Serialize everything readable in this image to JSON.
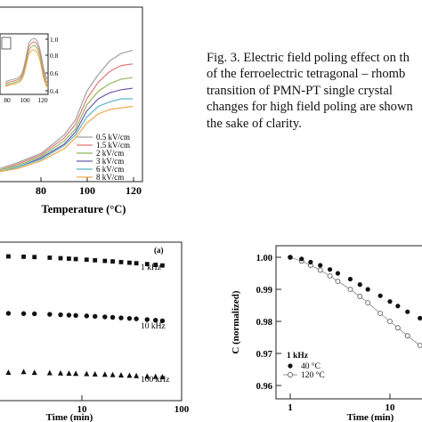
{
  "caption": {
    "lines": [
      "Fig. 3. Electric field poling effect on th",
      "of the ferroelectric tetragonal – rhomb",
      "transition of PMN-PT single crystal",
      "changes for high field poling are shown",
      "the sake of clarity."
    ]
  },
  "figure_top": {
    "xlabel": "Temperature (°C)",
    "x_ticks": [
      "80",
      "100",
      "120"
    ],
    "inset_x_ticks": [
      "80",
      "100",
      "120"
    ],
    "inset_y_ticks": [
      "1.0",
      "0.8",
      "0.6",
      "0.4"
    ],
    "legend": [
      "0.5 kV/cm",
      "1.5 kV/cm",
      "2 kV/cm",
      "3 kV/cm",
      "6 kV/cm",
      "8 kV/cm"
    ],
    "colors": [
      "#a0a0a0",
      "#e07a78",
      "#8fb85a",
      "#6e5aa8",
      "#5bb4c6",
      "#f0a84a"
    ]
  },
  "figure_bottom_left": {
    "panel_label": "(a)",
    "xlabel": "Time (min)",
    "x_ticks": [
      "10",
      "100"
    ],
    "series_labels": [
      "1 kHz",
      "10 kHz",
      "100 kHz"
    ]
  },
  "figure_bottom_right": {
    "ylabel": "C (normalized)",
    "y_ticks": [
      "1.00",
      "0.99",
      "0.98",
      "0.97",
      "0.96"
    ],
    "x_ticks": [
      "1",
      "10"
    ],
    "xlabel": "Time (min)",
    "legend_title": "1 kHz",
    "legend": [
      "40 °C",
      "120 °C"
    ]
  },
  "chart_data": [
    {
      "type": "line",
      "title": "",
      "xlabel": "Temperature (°C)",
      "ylabel": "",
      "xlim": [
        62,
        122
      ],
      "ylim": [
        0,
        1
      ],
      "x": [
        62,
        70,
        80,
        90,
        95,
        100,
        105,
        110,
        115,
        120
      ],
      "series": [
        {
          "name": "0.5 kV/cm",
          "values": [
            0.04,
            0.08,
            0.14,
            0.26,
            0.36,
            0.55,
            0.66,
            0.75,
            0.8,
            0.82
          ]
        },
        {
          "name": "1.5 kV/cm",
          "values": [
            0.03,
            0.07,
            0.13,
            0.24,
            0.33,
            0.5,
            0.61,
            0.68,
            0.72,
            0.73
          ]
        },
        {
          "name": "2 kV/cm",
          "values": [
            0.03,
            0.06,
            0.12,
            0.22,
            0.3,
            0.46,
            0.55,
            0.6,
            0.63,
            0.64
          ]
        },
        {
          "name": "3 kV/cm",
          "values": [
            0.02,
            0.05,
            0.11,
            0.2,
            0.28,
            0.42,
            0.5,
            0.54,
            0.56,
            0.57
          ]
        },
        {
          "name": "6 kV/cm",
          "values": [
            0.02,
            0.05,
            0.1,
            0.19,
            0.26,
            0.38,
            0.45,
            0.48,
            0.5,
            0.5
          ]
        },
        {
          "name": "8 kV/cm",
          "values": [
            0.02,
            0.04,
            0.09,
            0.17,
            0.24,
            0.34,
            0.4,
            0.43,
            0.44,
            0.45
          ]
        }
      ]
    },
    {
      "type": "scatter",
      "title": "",
      "xlabel": "Time (min)",
      "ylabel": "",
      "xscale": "log",
      "xlim": [
        0.8,
        100
      ],
      "x": [
        1,
        1.5,
        2,
        3,
        4,
        5,
        6,
        8,
        10,
        13,
        16,
        20,
        25,
        30,
        40,
        50,
        60
      ],
      "series": [
        {
          "name": "1 kHz",
          "values": [
            0,
            -0.3,
            -0.6,
            -1.2,
            -1.7,
            -2.1,
            -2.5,
            -3.1,
            -3.6,
            -4.2,
            -4.7,
            -5.3,
            -5.9,
            -6.4,
            -7.2,
            -7.9,
            -8.5
          ]
        },
        {
          "name": "10 kHz",
          "values": [
            0,
            -0.2,
            -0.4,
            -0.9,
            -1.3,
            -1.6,
            -1.9,
            -2.4,
            -2.8,
            -3.3,
            -3.7,
            -4.2,
            -4.7,
            -5.1,
            -5.8,
            -6.4,
            -6.9
          ]
        },
        {
          "name": "100 kHz",
          "values": [
            0,
            0.6,
            -0.1,
            -0.4,
            -0.6,
            -0.8,
            -1.0,
            -1.3,
            -1.6,
            -1.9,
            -2.2,
            -2.5,
            -2.8,
            -3.1,
            -3.5,
            -3.9,
            -4.2
          ]
        }
      ]
    },
    {
      "type": "scatter",
      "title": "",
      "xlabel": "Time (min)",
      "ylabel": "C (normalized)",
      "xscale": "log",
      "xlim": [
        0.8,
        40
      ],
      "ylim": [
        0.955,
        1.005
      ],
      "x": [
        1,
        1.3,
        1.6,
        2,
        2.5,
        3,
        4,
        5,
        6,
        8,
        10,
        12,
        15,
        20,
        25,
        30,
        40
      ],
      "series": [
        {
          "name": "40 °C",
          "values": [
            1.0,
            0.9995,
            0.9985,
            0.9975,
            0.9962,
            0.995,
            0.9932,
            0.9915,
            0.99,
            0.988,
            0.9862,
            0.9848,
            0.983,
            0.981,
            0.9795,
            0.978,
            0.976
          ]
        },
        {
          "name": "120 °C",
          "values": [
            1.0,
            0.9988,
            0.9975,
            0.996,
            0.9942,
            0.9925,
            0.99,
            0.9878,
            0.9858,
            0.9825,
            0.98,
            0.978,
            0.9755,
            0.9725,
            0.9703,
            0.968,
            0.965
          ]
        }
      ]
    }
  ]
}
